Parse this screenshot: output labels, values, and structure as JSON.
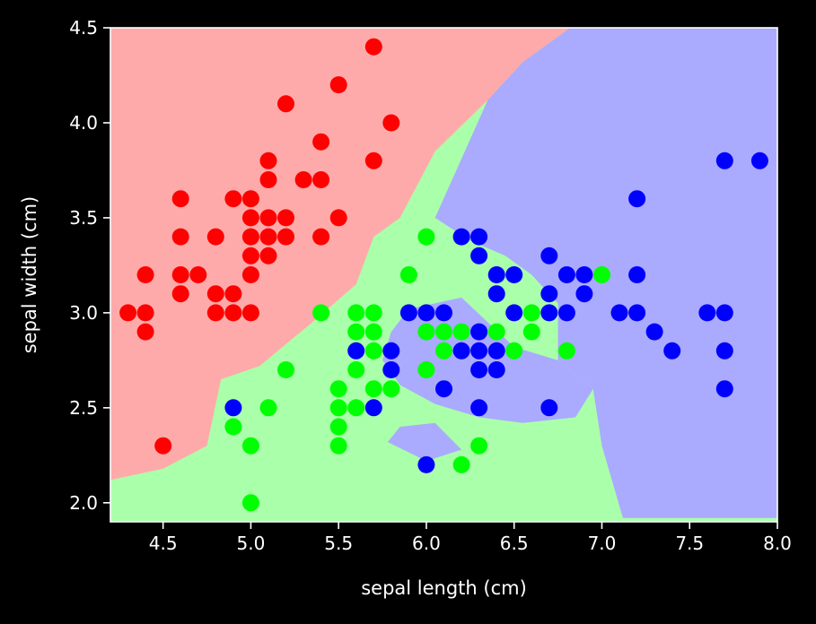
{
  "chart_data": {
    "type": "scatter",
    "title": "",
    "xlabel": "sepal length (cm)",
    "ylabel": "sepal width (cm)",
    "xlim": [
      4.2,
      8.0
    ],
    "ylim": [
      1.9,
      4.5
    ],
    "xticks": [
      4.5,
      5.0,
      5.5,
      6.0,
      6.5,
      7.0,
      7.5,
      8.0
    ],
    "xtick_labels": [
      "4.5",
      "5.0",
      "5.5",
      "6.0",
      "6.5",
      "7.0",
      "7.5",
      "8.0"
    ],
    "yticks": [
      2.0,
      2.5,
      3.0,
      3.5,
      4.0,
      4.5
    ],
    "ytick_labels": [
      "2.0",
      "2.5",
      "3.0",
      "3.5",
      "4.0",
      "4.5"
    ],
    "grid": false,
    "legend": false,
    "background": "#000000",
    "axis_color": "#ffffff",
    "decision_regions": {
      "colors": [
        "#ffaaaa",
        "#aaffaa",
        "#aaaaff"
      ],
      "red_boundary": [
        [
          4.2,
          2.12
        ],
        [
          4.5,
          2.18
        ],
        [
          4.75,
          2.3
        ],
        [
          4.83,
          2.65
        ],
        [
          5.05,
          2.72
        ],
        [
          5.35,
          2.95
        ],
        [
          5.6,
          3.15
        ],
        [
          5.7,
          3.4
        ],
        [
          5.85,
          3.5
        ],
        [
          6.05,
          3.85
        ],
        [
          6.35,
          4.12
        ],
        [
          6.55,
          4.32
        ],
        [
          6.82,
          4.5
        ]
      ],
      "blue_region": [
        [
          6.82,
          4.5
        ],
        [
          8.0,
          4.5
        ],
        [
          8.0,
          1.92
        ],
        [
          7.12,
          1.92
        ],
        [
          7.0,
          2.3
        ],
        [
          6.95,
          2.6
        ],
        [
          6.75,
          2.75
        ],
        [
          6.75,
          3.05
        ],
        [
          6.6,
          3.2
        ],
        [
          6.45,
          3.3
        ],
        [
          6.25,
          3.38
        ],
        [
          6.05,
          3.5
        ],
        [
          6.35,
          4.12
        ],
        [
          6.55,
          4.32
        ]
      ],
      "blue_islands": [
        [
          [
            5.9,
            3.02
          ],
          [
            6.2,
            3.08
          ],
          [
            6.35,
            2.95
          ],
          [
            6.5,
            2.82
          ],
          [
            6.75,
            2.75
          ],
          [
            6.95,
            2.6
          ],
          [
            6.85,
            2.45
          ],
          [
            6.55,
            2.42
          ],
          [
            6.3,
            2.45
          ],
          [
            6.05,
            2.52
          ],
          [
            5.85,
            2.62
          ],
          [
            5.75,
            2.75
          ],
          [
            5.8,
            2.9
          ]
        ],
        [
          [
            5.78,
            2.32
          ],
          [
            6.0,
            2.22
          ],
          [
            6.2,
            2.28
          ],
          [
            6.05,
            2.42
          ],
          [
            5.85,
            2.4
          ]
        ]
      ]
    },
    "series": [
      {
        "color": "#ff0000",
        "points": [
          [
            4.3,
            3.0
          ],
          [
            4.4,
            2.9
          ],
          [
            4.4,
            3.0
          ],
          [
            4.4,
            3.2
          ],
          [
            4.5,
            2.3
          ],
          [
            4.6,
            3.1
          ],
          [
            4.6,
            3.2
          ],
          [
            4.6,
            3.4
          ],
          [
            4.6,
            3.6
          ],
          [
            4.7,
            3.2
          ],
          [
            4.8,
            3.0
          ],
          [
            4.8,
            3.1
          ],
          [
            4.8,
            3.4
          ],
          [
            4.9,
            3.0
          ],
          [
            4.9,
            3.1
          ],
          [
            4.9,
            3.6
          ],
          [
            5.0,
            3.0
          ],
          [
            5.0,
            3.2
          ],
          [
            5.0,
            3.3
          ],
          [
            5.0,
            3.4
          ],
          [
            5.0,
            3.5
          ],
          [
            5.0,
            3.6
          ],
          [
            5.1,
            3.3
          ],
          [
            5.1,
            3.4
          ],
          [
            5.1,
            3.5
          ],
          [
            5.1,
            3.7
          ],
          [
            5.1,
            3.8
          ],
          [
            5.2,
            3.4
          ],
          [
            5.2,
            3.5
          ],
          [
            5.2,
            4.1
          ],
          [
            5.3,
            3.7
          ],
          [
            5.4,
            3.4
          ],
          [
            5.4,
            3.7
          ],
          [
            5.4,
            3.9
          ],
          [
            5.5,
            3.5
          ],
          [
            5.5,
            4.2
          ],
          [
            5.7,
            3.8
          ],
          [
            5.7,
            4.4
          ],
          [
            5.8,
            4.0
          ]
        ]
      },
      {
        "color": "#00ff00",
        "points": [
          [
            4.9,
            2.4
          ],
          [
            5.0,
            2.0
          ],
          [
            5.0,
            2.3
          ],
          [
            5.1,
            2.5
          ],
          [
            5.2,
            2.7
          ],
          [
            5.4,
            3.0
          ],
          [
            5.5,
            2.3
          ],
          [
            5.5,
            2.4
          ],
          [
            5.5,
            2.5
          ],
          [
            5.5,
            2.6
          ],
          [
            5.6,
            2.5
          ],
          [
            5.6,
            2.7
          ],
          [
            5.6,
            2.9
          ],
          [
            5.6,
            3.0
          ],
          [
            5.7,
            2.6
          ],
          [
            5.7,
            2.8
          ],
          [
            5.7,
            2.9
          ],
          [
            5.7,
            3.0
          ],
          [
            5.8,
            2.6
          ],
          [
            5.9,
            3.2
          ],
          [
            6.0,
            2.7
          ],
          [
            6.0,
            2.9
          ],
          [
            6.0,
            3.4
          ],
          [
            6.1,
            2.8
          ],
          [
            6.1,
            2.9
          ],
          [
            6.2,
            2.2
          ],
          [
            6.2,
            2.9
          ],
          [
            6.3,
            2.3
          ],
          [
            6.4,
            2.9
          ],
          [
            6.5,
            2.8
          ],
          [
            6.6,
            2.9
          ],
          [
            6.6,
            3.0
          ],
          [
            6.8,
            2.8
          ],
          [
            7.0,
            3.2
          ]
        ]
      },
      {
        "color": "#0000ff",
        "points": [
          [
            4.9,
            2.5
          ],
          [
            5.6,
            2.8
          ],
          [
            5.7,
            2.5
          ],
          [
            5.8,
            2.7
          ],
          [
            5.8,
            2.8
          ],
          [
            5.9,
            3.0
          ],
          [
            6.0,
            2.2
          ],
          [
            6.0,
            3.0
          ],
          [
            6.1,
            2.6
          ],
          [
            6.1,
            3.0
          ],
          [
            6.2,
            2.8
          ],
          [
            6.2,
            3.4
          ],
          [
            6.3,
            2.5
          ],
          [
            6.3,
            2.7
          ],
          [
            6.3,
            2.8
          ],
          [
            6.3,
            2.9
          ],
          [
            6.3,
            3.3
          ],
          [
            6.3,
            3.4
          ],
          [
            6.4,
            2.7
          ],
          [
            6.4,
            2.8
          ],
          [
            6.4,
            3.1
          ],
          [
            6.4,
            3.2
          ],
          [
            6.5,
            3.0
          ],
          [
            6.5,
            3.2
          ],
          [
            6.7,
            2.5
          ],
          [
            6.7,
            3.0
          ],
          [
            6.7,
            3.1
          ],
          [
            6.7,
            3.3
          ],
          [
            6.8,
            3.0
          ],
          [
            6.8,
            3.2
          ],
          [
            6.9,
            3.1
          ],
          [
            6.9,
            3.2
          ],
          [
            7.1,
            3.0
          ],
          [
            7.2,
            3.0
          ],
          [
            7.2,
            3.2
          ],
          [
            7.2,
            3.6
          ],
          [
            7.3,
            2.9
          ],
          [
            7.4,
            2.8
          ],
          [
            7.6,
            3.0
          ],
          [
            7.7,
            2.6
          ],
          [
            7.7,
            2.8
          ],
          [
            7.7,
            3.0
          ],
          [
            7.7,
            3.8
          ],
          [
            7.9,
            3.8
          ]
        ]
      }
    ]
  }
}
